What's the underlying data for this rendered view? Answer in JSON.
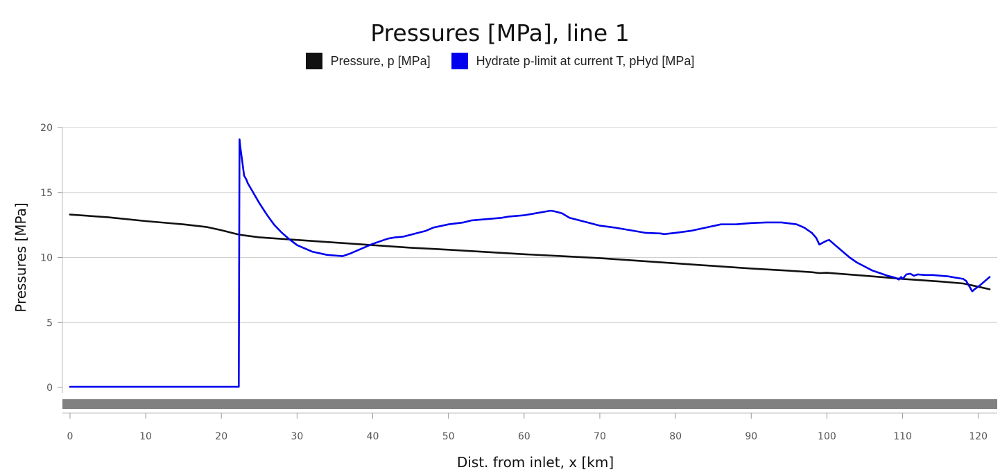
{
  "chart_data": {
    "type": "line",
    "title": "Pressures [MPa], line 1",
    "xlabel": "Dist. from inlet, x [km]",
    "ylabel": "Pressures [MPa]",
    "xlim": [
      -1,
      122.5
    ],
    "ylim": [
      0,
      20
    ],
    "xticks": [
      0,
      10,
      20,
      30,
      40,
      50,
      60,
      70,
      80,
      90,
      100,
      110,
      120
    ],
    "yticks": [
      0,
      5,
      10,
      15,
      20
    ],
    "grid": true,
    "legend_position": "top-center",
    "series": [
      {
        "name": "Pressure, p [MPa]",
        "color": "#111111",
        "x": [
          0,
          5,
          10,
          15,
          18,
          20,
          22.4,
          25,
          30,
          35,
          40,
          45,
          50,
          55,
          60,
          65,
          70,
          75,
          80,
          85,
          90,
          95,
          98,
          99,
          100,
          105,
          110,
          115,
          118,
          120,
          121.5
        ],
        "y": [
          13.3,
          13.1,
          12.8,
          12.55,
          12.35,
          12.1,
          11.75,
          11.55,
          11.35,
          11.15,
          10.95,
          10.75,
          10.6,
          10.42,
          10.25,
          10.1,
          9.95,
          9.75,
          9.55,
          9.35,
          9.15,
          8.98,
          8.87,
          8.8,
          8.82,
          8.6,
          8.35,
          8.15,
          8.0,
          7.75,
          7.55
        ]
      },
      {
        "name": "Hydrate p-limit at current T, pHyd [MPa]",
        "color": "#0000ee",
        "x": [
          0,
          10,
          20,
          22.3,
          22.4,
          22.5,
          22.8,
          23,
          23.3,
          23.5,
          24,
          25,
          26,
          27,
          28,
          29,
          30,
          32,
          34,
          35,
          36,
          37,
          38,
          40,
          42,
          43,
          44,
          45,
          46,
          47,
          48,
          50,
          52,
          53,
          55,
          57,
          58,
          60,
          62,
          63,
          63.5,
          64,
          65,
          66,
          68,
          70,
          72,
          74,
          76,
          78,
          78.5,
          80,
          82,
          84,
          86,
          88,
          90,
          92,
          94,
          96,
          97,
          98,
          98.6,
          99,
          99.5,
          100,
          100.3,
          101,
          102,
          103,
          104,
          105,
          106,
          107,
          108,
          109,
          109.5,
          109.8,
          110,
          110.5,
          111,
          111.5,
          112,
          113,
          114,
          115,
          116,
          117,
          118,
          118.4,
          118.8,
          119.2,
          119.6,
          120,
          121.5
        ],
        "y": [
          0.05,
          0.05,
          0.05,
          0.05,
          19.1,
          18.5,
          17.2,
          16.3,
          16.0,
          15.7,
          15.2,
          14.2,
          13.3,
          12.5,
          11.9,
          11.4,
          10.95,
          10.45,
          10.2,
          10.15,
          10.1,
          10.3,
          10.55,
          11.05,
          11.45,
          11.55,
          11.6,
          11.75,
          11.9,
          12.05,
          12.3,
          12.55,
          12.7,
          12.85,
          12.95,
          13.05,
          13.15,
          13.25,
          13.45,
          13.55,
          13.6,
          13.55,
          13.4,
          13.05,
          12.75,
          12.45,
          12.3,
          12.1,
          11.9,
          11.85,
          11.8,
          11.9,
          12.05,
          12.3,
          12.55,
          12.55,
          12.65,
          12.7,
          12.7,
          12.55,
          12.3,
          11.9,
          11.5,
          11.0,
          11.15,
          11.3,
          11.35,
          11.0,
          10.5,
          10.0,
          9.6,
          9.3,
          9.0,
          8.8,
          8.6,
          8.45,
          8.3,
          8.5,
          8.35,
          8.7,
          8.75,
          8.6,
          8.7,
          8.65,
          8.65,
          8.6,
          8.55,
          8.45,
          8.35,
          8.2,
          7.8,
          7.4,
          7.6,
          7.75,
          8.5
        ]
      }
    ]
  }
}
